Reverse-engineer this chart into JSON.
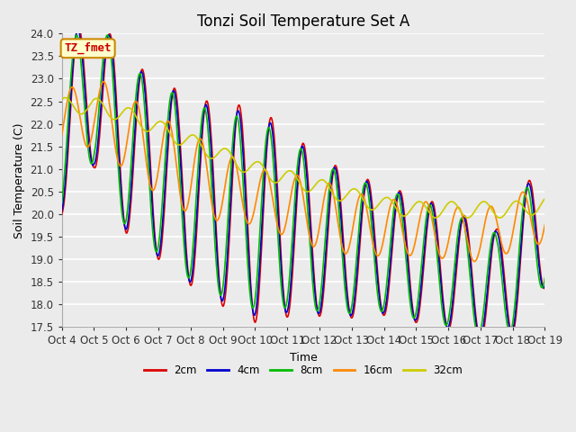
{
  "title": "Tonzi Soil Temperature Set A",
  "xlabel": "Time",
  "ylabel": "Soil Temperature (C)",
  "annotation": "TZ_fmet",
  "annotation_bg": "#ffffcc",
  "annotation_border": "#cc8800",
  "annotation_text_color": "#cc0000",
  "ylim": [
    17.5,
    24.0
  ],
  "yticks": [
    17.5,
    18.0,
    18.5,
    19.0,
    19.5,
    20.0,
    20.5,
    21.0,
    21.5,
    22.0,
    22.5,
    23.0,
    23.5,
    24.0
  ],
  "xtick_labels": [
    "Oct 4",
    "Oct 5",
    "Oct 6",
    "Oct 7",
    "Oct 8",
    "Oct 9",
    "Oct 10",
    "Oct 11",
    "Oct 12",
    "Oct 13",
    "Oct 14",
    "Oct 15",
    "Oct 16",
    "Oct 17",
    "Oct 18",
    "Oct 19"
  ],
  "legend_labels": [
    "2cm",
    "4cm",
    "8cm",
    "16cm",
    "32cm"
  ],
  "line_colors": [
    "#dd0000",
    "#0000cc",
    "#00bb00",
    "#ff8800",
    "#cccc00"
  ],
  "line_widths": [
    1.2,
    1.2,
    1.2,
    1.2,
    1.2
  ],
  "bg_color": "#ebebeb",
  "plot_bg": "#ebebeb",
  "grid_color": "white",
  "title_fontsize": 12,
  "axis_fontsize": 9,
  "tick_fontsize": 8.5
}
